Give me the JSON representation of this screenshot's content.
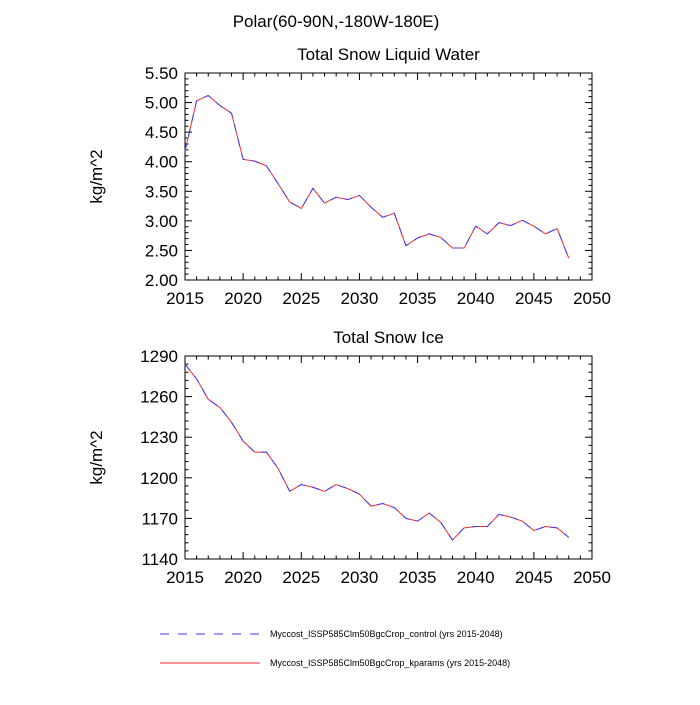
{
  "figure_title": "Polar(60-90N,-180W-180E)",
  "colors": {
    "control": "#3b3bff",
    "kparams": "#ff2a2a",
    "axis": "#000000"
  },
  "legend": {
    "placement": "bottom",
    "items": [
      {
        "label": "Myccost_ISSP585Clm50BgcCrop_control (yrs 2015-2048)",
        "style": "dashed",
        "color": "#3b3bff"
      },
      {
        "label": "Myccost_ISSP585Clm50BgcCrop_kparams (yrs 2015-2048)",
        "style": "solid",
        "color": "#ff2a2a"
      }
    ]
  },
  "chart_data": [
    {
      "type": "line",
      "title": "Total Snow Liquid Water",
      "xlabel": "",
      "ylabel": "kg/m^2",
      "xlim": [
        2015,
        2050
      ],
      "ylim": [
        2.0,
        5.5
      ],
      "xticks": [
        "2015",
        "2020",
        "2025",
        "2030",
        "2035",
        "2040",
        "2045",
        "2050"
      ],
      "yticks": [
        "2.00",
        "2.50",
        "3.00",
        "3.50",
        "4.00",
        "4.50",
        "5.00",
        "5.50"
      ],
      "grid": false,
      "x": [
        2015,
        2016,
        2017,
        2018,
        2019,
        2020,
        2021,
        2022,
        2023,
        2024,
        2025,
        2026,
        2027,
        2028,
        2029,
        2030,
        2031,
        2032,
        2033,
        2034,
        2035,
        2036,
        2037,
        2038,
        2039,
        2040,
        2041,
        2042,
        2043,
        2044,
        2045,
        2046,
        2047,
        2048
      ],
      "series": [
        {
          "name": "Myccost_ISSP585Clm50BgcCrop_control (yrs 2015-2048)",
          "values": [
            4.18,
            5.03,
            5.12,
            4.95,
            4.82,
            4.04,
            4.01,
            3.93,
            3.63,
            3.32,
            3.21,
            3.55,
            3.3,
            3.4,
            3.36,
            3.43,
            3.23,
            3.06,
            3.13,
            2.58,
            2.71,
            2.78,
            2.72,
            2.54,
            2.54,
            2.91,
            2.78,
            2.97,
            2.92,
            3.01,
            2.91,
            2.78,
            2.87,
            2.37
          ]
        },
        {
          "name": "Myccost_ISSP585Clm50BgcCrop_kparams (yrs 2015-2048)",
          "values": [
            4.18,
            5.03,
            5.12,
            4.95,
            4.82,
            4.04,
            4.01,
            3.93,
            3.63,
            3.32,
            3.21,
            3.55,
            3.3,
            3.4,
            3.36,
            3.43,
            3.23,
            3.06,
            3.13,
            2.58,
            2.71,
            2.78,
            2.72,
            2.54,
            2.54,
            2.91,
            2.78,
            2.97,
            2.92,
            3.01,
            2.91,
            2.78,
            2.87,
            2.37
          ]
        }
      ]
    },
    {
      "type": "line",
      "title": "Total Snow Ice",
      "xlabel": "",
      "ylabel": "kg/m^2",
      "xlim": [
        2015,
        2050
      ],
      "ylim": [
        1140,
        1290
      ],
      "xticks": [
        "2015",
        "2020",
        "2025",
        "2030",
        "2035",
        "2040",
        "2045",
        "2050"
      ],
      "yticks": [
        "1140",
        "1170",
        "1200",
        "1230",
        "1260",
        "1290"
      ],
      "grid": false,
      "x": [
        2015,
        2016,
        2017,
        2018,
        2019,
        2020,
        2021,
        2022,
        2023,
        2024,
        2025,
        2026,
        2027,
        2028,
        2029,
        2030,
        2031,
        2032,
        2033,
        2034,
        2035,
        2036,
        2037,
        2038,
        2039,
        2040,
        2041,
        2042,
        2043,
        2044,
        2045,
        2046,
        2047,
        2048
      ],
      "series": [
        {
          "name": "Myccost_ISSP585Clm50BgcCrop_control (yrs 2015-2048)",
          "values": [
            1284,
            1273,
            1258,
            1252,
            1241,
            1227,
            1219,
            1219,
            1207,
            1190,
            1195,
            1193,
            1190,
            1195,
            1192,
            1188,
            1179,
            1181,
            1178,
            1170,
            1168,
            1174,
            1167,
            1154,
            1163,
            1164,
            1164,
            1173,
            1171,
            1168,
            1161,
            1164,
            1163,
            1156
          ]
        },
        {
          "name": "Myccost_ISSP585Clm50BgcCrop_kparams (yrs 2015-2048)",
          "values": [
            1284,
            1273,
            1258,
            1252,
            1241,
            1227,
            1219,
            1219,
            1207,
            1190,
            1195,
            1193,
            1190,
            1195,
            1192,
            1188,
            1179,
            1181,
            1178,
            1170,
            1168,
            1174,
            1167,
            1154,
            1163,
            1164,
            1164,
            1173,
            1171,
            1168,
            1161,
            1164,
            1163,
            1156
          ]
        }
      ]
    }
  ]
}
